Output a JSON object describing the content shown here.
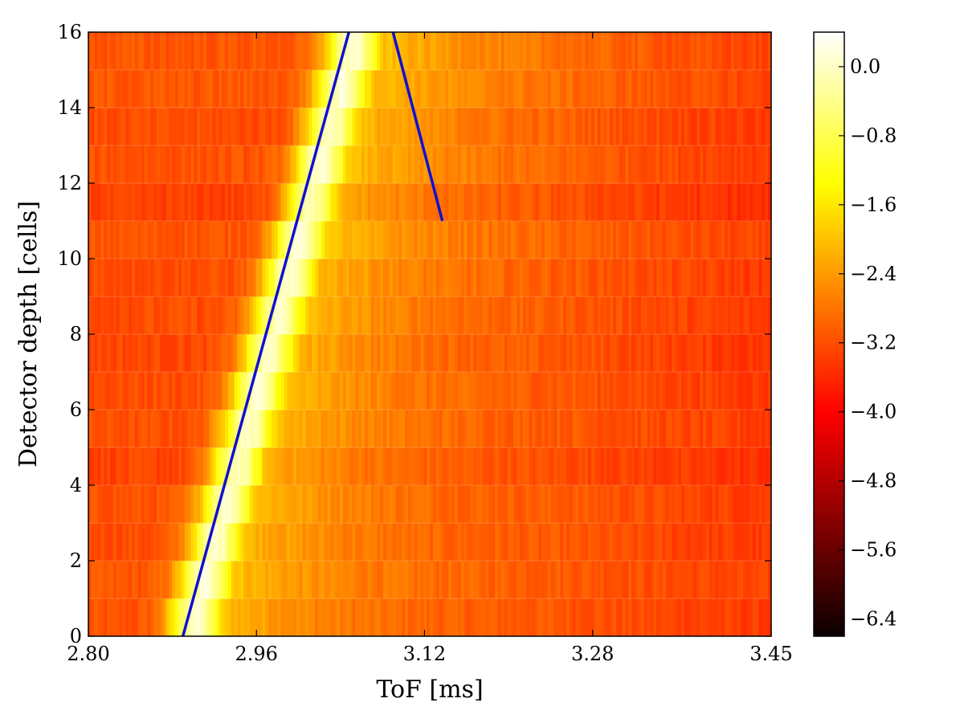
{
  "chart_data": {
    "type": "heatmap",
    "title": "",
    "xlabel": "ToF [ms]",
    "ylabel": "Detector depth [cells]",
    "xlim": [
      2.8,
      3.45
    ],
    "ylim": [
      0,
      16
    ],
    "x_ticks": [
      "2.80",
      "2.96",
      "3.12",
      "3.28",
      "3.45"
    ],
    "y_ticks": [
      "0",
      "2",
      "4",
      "6",
      "8",
      "10",
      "12",
      "14",
      "16"
    ],
    "rows": 16,
    "colorbar": {
      "colormap": "hot",
      "range": [
        -6.6,
        0.4
      ],
      "ticks": [
        "0.0",
        "−0.8",
        "−1.6",
        "−2.4",
        "−3.2",
        "−4.0",
        "−4.8",
        "−5.6",
        "−6.4"
      ]
    },
    "intensity_model": {
      "peak_tof_at_depth_0": 2.897,
      "peak_tof_at_depth_16": 3.056,
      "peak_value": 0.0,
      "background_value": -3.2
    },
    "series": [
      {
        "color": "#1010d0",
        "points": [
          [
            2.89,
            0
          ],
          [
            3.048,
            16
          ]
        ]
      },
      {
        "color": "#1010d0",
        "points": [
          [
            3.09,
            16
          ],
          [
            3.137,
            11
          ]
        ]
      }
    ]
  }
}
